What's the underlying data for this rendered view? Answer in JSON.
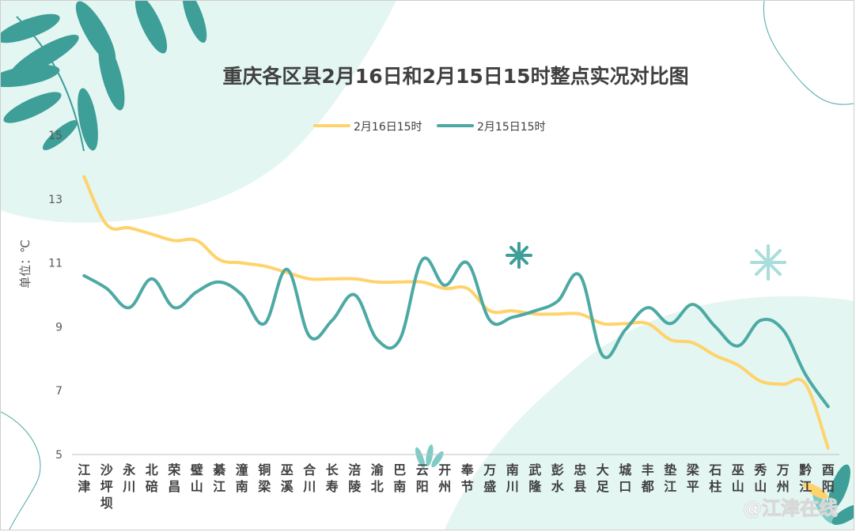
{
  "colors": {
    "series1": "#FFD36B",
    "series2": "#4DA9A4",
    "mint": "#E3F6F2",
    "leaf": "#3E9E98",
    "leaf_light": "#7FCBC6",
    "text": "#404040",
    "axis": "#BFBFBF"
  },
  "icons": [
    "leaf-branch-icon",
    "star-sparkle-icon"
  ],
  "watermark": "@江津在线",
  "chart_data": {
    "type": "line",
    "title": "重庆各区县2月16日和2月15日15时整点实况对比图",
    "ylabel": "单位：℃",
    "xlabel": "",
    "ylim": [
      5,
      15
    ],
    "yticks": [
      "5",
      "7",
      "9",
      "11",
      "13",
      "15"
    ],
    "grid": false,
    "legend_position": "top",
    "smooth": true,
    "categories": [
      "江津",
      "沙坪坝",
      "永川",
      "北碚",
      "荣昌",
      "璧山",
      "綦江",
      "潼南",
      "铜梁",
      "巫溪",
      "合川",
      "长寿",
      "涪陵",
      "渝北",
      "巴南",
      "云阳",
      "开州",
      "奉节",
      "万盛",
      "南川",
      "武隆",
      "彭水",
      "忠县",
      "大足",
      "城口",
      "丰都",
      "垫江",
      "梁平",
      "石柱",
      "巫山",
      "秀山",
      "万州",
      "黔江",
      "酉阳"
    ],
    "series": [
      {
        "name": "2月16日15时",
        "values": [
          13.7,
          12.2,
          12.1,
          11.9,
          11.7,
          11.7,
          11.1,
          11.0,
          10.9,
          10.7,
          10.5,
          10.5,
          10.5,
          10.4,
          10.4,
          10.4,
          10.2,
          10.2,
          9.5,
          9.5,
          9.4,
          9.4,
          9.4,
          9.1,
          9.1,
          9.1,
          8.6,
          8.5,
          8.1,
          7.8,
          7.3,
          7.2,
          7.2,
          5.2
        ]
      },
      {
        "name": "2月15日15时",
        "values": [
          10.6,
          10.2,
          9.6,
          10.5,
          9.6,
          10.1,
          10.4,
          10.0,
          9.1,
          10.8,
          8.7,
          9.2,
          10.0,
          8.6,
          8.6,
          11.1,
          10.3,
          11.0,
          9.2,
          9.3,
          9.5,
          9.8,
          10.6,
          8.1,
          8.9,
          9.6,
          9.1,
          9.7,
          9.0,
          8.4,
          9.2,
          8.9,
          7.5,
          6.5
        ]
      }
    ]
  }
}
